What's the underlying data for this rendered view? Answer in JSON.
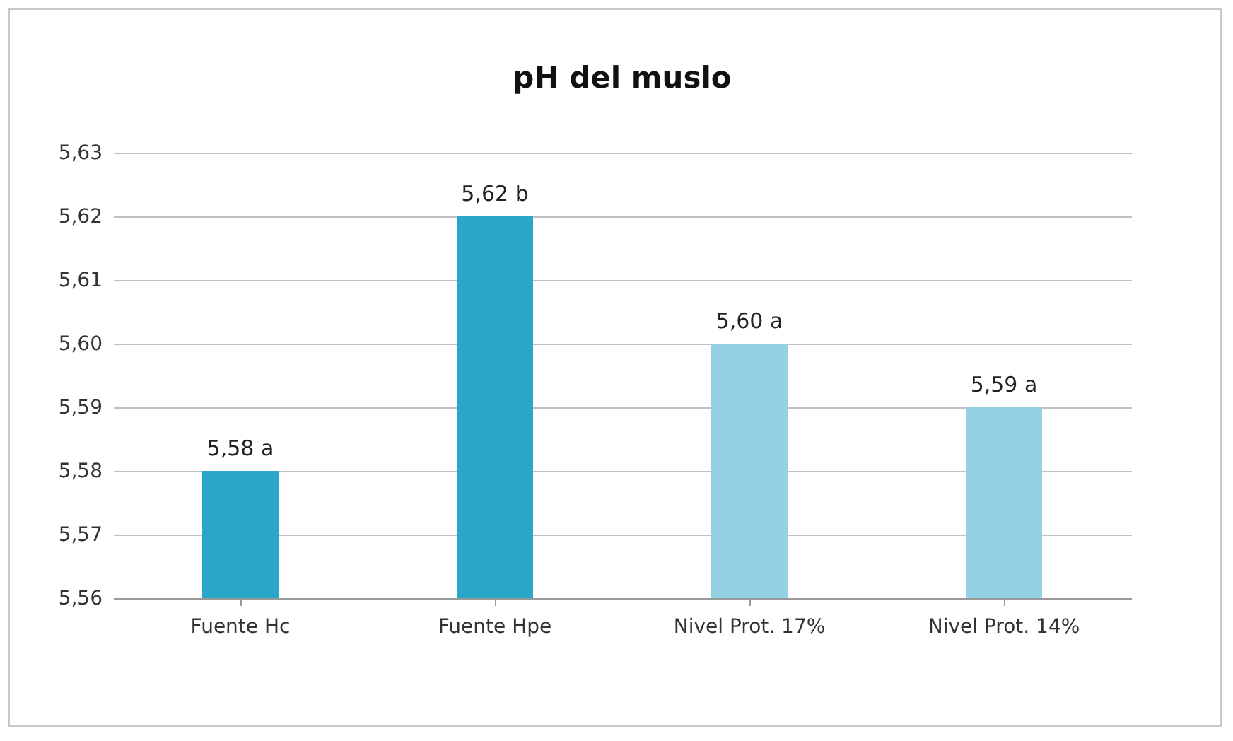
{
  "chart_data": {
    "type": "bar",
    "title": "pH del muslo",
    "categories": [
      "Fuente Hc",
      "Fuente Hpe",
      "Nivel Prot. 17%",
      "Nivel Prot. 14%"
    ],
    "values": [
      5.58,
      5.62,
      5.6,
      5.59
    ],
    "value_labels": [
      "5,58 a",
      "5,62 b",
      "5,60 a",
      "5,59 a"
    ],
    "colors": [
      "#2aa6c8",
      "#2aa6c8",
      "#93d1e4",
      "#93d1e4"
    ],
    "ylim": [
      5.56,
      5.63
    ],
    "yticks": [
      {
        "value": 5.56,
        "label": "5,56"
      },
      {
        "value": 5.57,
        "label": "5,57"
      },
      {
        "value": 5.58,
        "label": "5,58"
      },
      {
        "value": 5.59,
        "label": "5,59"
      },
      {
        "value": 5.6,
        "label": "5,60"
      },
      {
        "value": 5.61,
        "label": "5,61"
      },
      {
        "value": 5.62,
        "label": "5,62"
      },
      {
        "value": 5.63,
        "label": "5,63"
      }
    ],
    "grid": "y"
  }
}
